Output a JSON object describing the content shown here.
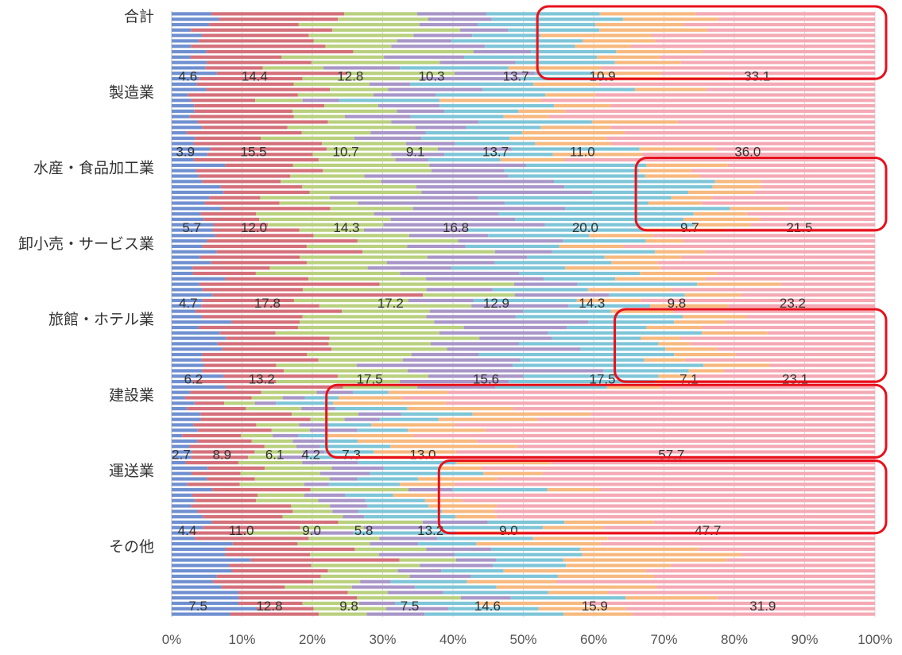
{
  "chart_data": {
    "type": "bar",
    "orientation": "horizontal",
    "stacked": "percent",
    "categories": [
      "合計",
      "製造業",
      "水産・食品加工業",
      "卸小売・サービス業",
      "旅館・ホテル業",
      "建設業",
      "運送業",
      "その他"
    ],
    "series": [
      {
        "color": "#6f8fd0",
        "values": [
          4.6,
          3.9,
          5.7,
          4.7,
          6.2,
          2.7,
          4.4,
          7.5
        ]
      },
      {
        "color": "#d4707a",
        "values": [
          14.4,
          15.5,
          12.0,
          17.8,
          13.2,
          8.9,
          11.0,
          12.8
        ]
      },
      {
        "color": "#b9d07e",
        "values": [
          12.8,
          10.7,
          14.3,
          17.2,
          17.5,
          6.1,
          9.0,
          9.8
        ]
      },
      {
        "color": "#a896c8",
        "values": [
          10.3,
          9.1,
          16.8,
          12.9,
          15.6,
          4.2,
          5.8,
          7.5
        ]
      },
      {
        "color": "#7ec5d8",
        "values": [
          13.7,
          13.7,
          20.0,
          14.3,
          17.5,
          7.3,
          13.2,
          14.6
        ]
      },
      {
        "color": "#f7b97f",
        "values": [
          10.9,
          11.0,
          9.7,
          9.8,
          7.1,
          13.0,
          9.0,
          15.9
        ]
      },
      {
        "color": "#f4a9b4",
        "values": [
          33.1,
          36.0,
          21.5,
          23.2,
          23.1,
          57.7,
          47.7,
          31.9
        ]
      }
    ],
    "data_labels": [
      [
        "4.6",
        "14.4",
        "12.8",
        "10.3",
        "13.7",
        "10.9",
        "33.1"
      ],
      [
        "3.9",
        "15.5",
        "10.7",
        "9.1",
        "13.7",
        "11.0",
        "36.0"
      ],
      [
        "5.7",
        "12.0",
        "14.3",
        "16.8",
        "20.0",
        "9.7",
        "21.5"
      ],
      [
        "4.7",
        "17.8",
        "17.2",
        "12.9",
        "14.3",
        "9.8",
        "23.2"
      ],
      [
        "6.2",
        "13.2",
        "17.5",
        "15.6",
        "17.5",
        "7.1",
        "23.1"
      ],
      [
        "2.7",
        "8.9",
        "6.1",
        "4.2",
        "7.3",
        "13.0",
        "57.7"
      ],
      [
        "4.4",
        "11.0",
        "9.0",
        "5.8",
        "13.2",
        "9.0",
        "47.7"
      ],
      [
        "7.5",
        "12.8",
        "9.8",
        "7.5",
        "14.6",
        "15.9",
        "31.9"
      ]
    ],
    "x_ticks": [
      "0%",
      "10%",
      "20%",
      "30%",
      "40%",
      "50%",
      "60%",
      "70%",
      "80%",
      "90%",
      "100%"
    ],
    "xlim": [
      0,
      100
    ],
    "grid": true,
    "legend": "none",
    "title": "",
    "xlabel": "",
    "ylabel": "",
    "highlighted_segments": [
      {
        "category": "合計",
        "from_percent": 52,
        "to_percent": 100
      },
      {
        "category": "水産・食品加工業",
        "from_percent": 66,
        "to_percent": 100
      },
      {
        "category": "旅館・ホテル業",
        "from_percent": 63,
        "to_percent": 100
      },
      {
        "category": "建設業",
        "from_percent": 22,
        "to_percent": 100
      },
      {
        "category": "運送業",
        "from_percent": 38,
        "to_percent": 100
      }
    ],
    "highlight_color": "#e8101b"
  }
}
